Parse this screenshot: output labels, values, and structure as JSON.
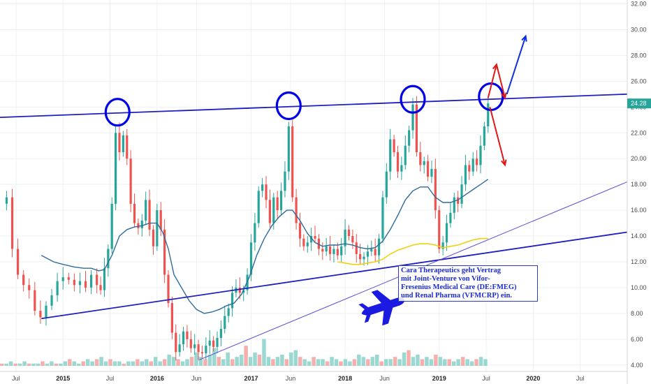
{
  "colors": {
    "up_candle": "#26a69a",
    "down_candle": "#ef5350",
    "trendline": "#1f1fbf",
    "thin_trendline": "#5a4fd6",
    "ma_short": "#2f6b9a",
    "ma_long": "#f0d010",
    "circle": "#0000e6",
    "arrow_red": "#e01818",
    "arrow_blue": "#1030e0",
    "price_tag": "#26a69a",
    "plane": "#1a1ae0",
    "volume_up": "#8fd4cc",
    "volume_down": "#f4a6a4"
  },
  "price_tag": {
    "label": "24.28",
    "value": 24.28
  },
  "annotation": {
    "lines": [
      "Cara Therapeutics geht Vertrag",
      "mit Joint-Venture von Vifor-",
      "Fresenius Medical Care (DE:FMEG)",
      "und Renal Pharma (VFMCRP) ein."
    ]
  },
  "icons": [
    "airplane-icon",
    "circle-marker",
    "arrow-up-blue",
    "arrow-down-red"
  ],
  "chart_data": {
    "type": "candlestick",
    "y_axis": {
      "ticks": [
        4,
        6,
        8,
        10,
        12,
        14,
        16,
        18,
        20,
        22,
        24,
        26,
        28,
        30,
        32
      ],
      "tick_labels": [
        "4.00",
        "6.00",
        "8.00",
        "10.00",
        "12.00",
        "14.00",
        "16.00",
        "18.00",
        "20.00",
        "22.00",
        "24.00",
        "26.00",
        "28.00",
        "30.00",
        "32.00"
      ],
      "range": [
        3.5,
        32.3
      ],
      "position": "right",
      "grid": true
    },
    "x_axis": {
      "ticks": [
        {
          "label": "Jul",
          "t": 2014.5,
          "bold": false
        },
        {
          "label": "2015",
          "t": 2015.0,
          "bold": true
        },
        {
          "label": "Jul",
          "t": 2015.5,
          "bold": false
        },
        {
          "label": "2016",
          "t": 2016.0,
          "bold": true
        },
        {
          "label": "Jun",
          "t": 2016.42,
          "bold": false
        },
        {
          "label": "2017",
          "t": 2017.0,
          "bold": true
        },
        {
          "label": "Jun",
          "t": 2017.42,
          "bold": false
        },
        {
          "label": "2018",
          "t": 2018.0,
          "bold": true
        },
        {
          "label": "Jun",
          "t": 2018.42,
          "bold": false
        },
        {
          "label": "2019",
          "t": 2019.0,
          "bold": true
        },
        {
          "label": "Jul",
          "t": 2019.5,
          "bold": false
        },
        {
          "label": "2020",
          "t": 2020.0,
          "bold": true
        },
        {
          "label": "Jul",
          "t": 2020.5,
          "bold": false
        }
      ],
      "range": [
        2014.33,
        2021.0
      ],
      "grid": true
    },
    "close_series": [
      [
        2014.33,
        16.5
      ],
      [
        2014.4,
        17.0
      ],
      [
        2014.46,
        13.0
      ],
      [
        2014.52,
        11.0
      ],
      [
        2014.58,
        10.2
      ],
      [
        2014.64,
        9.8
      ],
      [
        2014.7,
        8.2
      ],
      [
        2014.76,
        7.7
      ],
      [
        2014.82,
        8.6
      ],
      [
        2014.88,
        9.4
      ],
      [
        2014.94,
        10.5
      ],
      [
        2015.0,
        10.8
      ],
      [
        2015.06,
        10.6
      ],
      [
        2015.12,
        10.2
      ],
      [
        2015.18,
        10.5
      ],
      [
        2015.24,
        10.0
      ],
      [
        2015.3,
        11.0
      ],
      [
        2015.36,
        10.2
      ],
      [
        2015.4,
        9.8
      ],
      [
        2015.44,
        11.5
      ],
      [
        2015.48,
        13.0
      ],
      [
        2015.52,
        16.5
      ],
      [
        2015.56,
        22.0
      ],
      [
        2015.6,
        20.5
      ],
      [
        2015.64,
        21.8
      ],
      [
        2015.68,
        20.0
      ],
      [
        2015.72,
        16.5
      ],
      [
        2015.76,
        15.0
      ],
      [
        2015.8,
        14.6
      ],
      [
        2015.84,
        15.2
      ],
      [
        2015.88,
        16.8
      ],
      [
        2015.92,
        14.5
      ],
      [
        2015.96,
        13.2
      ],
      [
        2016.0,
        16.0
      ],
      [
        2016.04,
        14.5
      ],
      [
        2016.08,
        11.0
      ],
      [
        2016.12,
        8.8
      ],
      [
        2016.16,
        6.5
      ],
      [
        2016.2,
        5.0
      ],
      [
        2016.24,
        5.6
      ],
      [
        2016.28,
        6.6
      ],
      [
        2016.32,
        6.0
      ],
      [
        2016.36,
        5.3
      ],
      [
        2016.4,
        5.6
      ],
      [
        2016.44,
        5.0
      ],
      [
        2016.48,
        4.9
      ],
      [
        2016.52,
        5.5
      ],
      [
        2016.56,
        5.9
      ],
      [
        2016.6,
        5.4
      ],
      [
        2016.64,
        6.1
      ],
      [
        2016.68,
        6.8
      ],
      [
        2016.72,
        7.8
      ],
      [
        2016.76,
        8.4
      ],
      [
        2016.8,
        9.6
      ],
      [
        2016.84,
        10.0
      ],
      [
        2016.88,
        9.6
      ],
      [
        2016.92,
        9.8
      ],
      [
        2016.96,
        11.0
      ],
      [
        2017.0,
        13.5
      ],
      [
        2017.04,
        15.0
      ],
      [
        2017.08,
        17.5
      ],
      [
        2017.12,
        18.0
      ],
      [
        2017.16,
        16.8
      ],
      [
        2017.2,
        15.0
      ],
      [
        2017.24,
        17.0
      ],
      [
        2017.28,
        16.0
      ],
      [
        2017.32,
        17.5
      ],
      [
        2017.36,
        19.0
      ],
      [
        2017.4,
        22.5
      ],
      [
        2017.44,
        17.0
      ],
      [
        2017.48,
        15.0
      ],
      [
        2017.52,
        13.8
      ],
      [
        2017.56,
        13.2
      ],
      [
        2017.6,
        13.5
      ],
      [
        2017.64,
        14.0
      ],
      [
        2017.68,
        13.8
      ],
      [
        2017.72,
        13.0
      ],
      [
        2017.76,
        12.8
      ],
      [
        2017.8,
        13.2
      ],
      [
        2017.84,
        12.6
      ],
      [
        2017.88,
        13.0
      ],
      [
        2017.92,
        12.5
      ],
      [
        2017.96,
        13.2
      ],
      [
        2018.0,
        14.5
      ],
      [
        2018.04,
        14.0
      ],
      [
        2018.08,
        13.5
      ],
      [
        2018.12,
        12.6
      ],
      [
        2018.16,
        12.2
      ],
      [
        2018.2,
        12.4
      ],
      [
        2018.24,
        12.8
      ],
      [
        2018.28,
        13.0
      ],
      [
        2018.32,
        12.5
      ],
      [
        2018.36,
        13.8
      ],
      [
        2018.4,
        17.0
      ],
      [
        2018.44,
        19.0
      ],
      [
        2018.48,
        21.5
      ],
      [
        2018.52,
        20.5
      ],
      [
        2018.56,
        19.0
      ],
      [
        2018.6,
        19.5
      ],
      [
        2018.64,
        21.0
      ],
      [
        2018.68,
        22.2
      ],
      [
        2018.72,
        24.2
      ],
      [
        2018.76,
        20.5
      ],
      [
        2018.8,
        19.5
      ],
      [
        2018.84,
        19.8
      ],
      [
        2018.88,
        18.6
      ],
      [
        2018.92,
        19.2
      ],
      [
        2018.96,
        16.0
      ],
      [
        2019.0,
        13.0
      ],
      [
        2019.04,
        13.5
      ],
      [
        2019.08,
        15.0
      ],
      [
        2019.12,
        15.8
      ],
      [
        2019.16,
        17.0
      ],
      [
        2019.2,
        16.5
      ],
      [
        2019.24,
        18.0
      ],
      [
        2019.28,
        19.5
      ],
      [
        2019.32,
        19.0
      ],
      [
        2019.36,
        20.0
      ],
      [
        2019.4,
        19.5
      ],
      [
        2019.44,
        21.0
      ],
      [
        2019.48,
        22.5
      ],
      [
        2019.52,
        24.28
      ]
    ],
    "moving_average_short": [
      [
        2014.77,
        12.5
      ],
      [
        2014.9,
        12.0
      ],
      [
        2015.0,
        11.8
      ],
      [
        2015.12,
        11.6
      ],
      [
        2015.22,
        11.5
      ],
      [
        2015.3,
        11.5
      ],
      [
        2015.38,
        11.3
      ],
      [
        2015.44,
        11.4
      ],
      [
        2015.52,
        12.5
      ],
      [
        2015.6,
        14.0
      ],
      [
        2015.68,
        14.5
      ],
      [
        2015.76,
        14.7
      ],
      [
        2015.84,
        14.8
      ],
      [
        2015.92,
        15.0
      ],
      [
        2016.0,
        15.0
      ],
      [
        2016.06,
        14.3
      ],
      [
        2016.12,
        13.0
      ],
      [
        2016.18,
        11.0
      ],
      [
        2016.26,
        10.0
      ],
      [
        2016.34,
        9.0
      ],
      [
        2016.42,
        8.3
      ],
      [
        2016.5,
        8.0
      ],
      [
        2016.58,
        8.1
      ],
      [
        2016.66,
        8.3
      ],
      [
        2016.74,
        8.6
      ],
      [
        2016.82,
        8.8
      ],
      [
        2016.9,
        9.5
      ],
      [
        2016.98,
        10.8
      ],
      [
        2017.06,
        12.5
      ],
      [
        2017.14,
        13.8
      ],
      [
        2017.22,
        14.8
      ],
      [
        2017.3,
        15.5
      ],
      [
        2017.38,
        16.0
      ],
      [
        2017.44,
        16.0
      ],
      [
        2017.52,
        15.2
      ],
      [
        2017.6,
        14.2
      ],
      [
        2017.68,
        13.5
      ],
      [
        2017.76,
        13.2
      ],
      [
        2017.84,
        13.3
      ],
      [
        2017.92,
        13.3
      ],
      [
        2018.0,
        13.4
      ],
      [
        2018.08,
        13.3
      ],
      [
        2018.16,
        13.1
      ],
      [
        2018.24,
        13.0
      ],
      [
        2018.32,
        13.1
      ],
      [
        2018.4,
        13.6
      ],
      [
        2018.48,
        14.5
      ],
      [
        2018.56,
        15.6
      ],
      [
        2018.64,
        16.8
      ],
      [
        2018.72,
        17.5
      ],
      [
        2018.8,
        17.8
      ],
      [
        2018.88,
        17.8
      ],
      [
        2018.96,
        17.0
      ],
      [
        2019.04,
        16.6
      ],
      [
        2019.12,
        16.6
      ],
      [
        2019.2,
        16.8
      ],
      [
        2019.28,
        17.2
      ],
      [
        2019.36,
        17.6
      ],
      [
        2019.44,
        18.0
      ],
      [
        2019.52,
        18.4
      ]
    ],
    "moving_average_long": [
      [
        2017.92,
        12.0
      ],
      [
        2018.0,
        11.9
      ],
      [
        2018.08,
        11.8
      ],
      [
        2018.16,
        11.8
      ],
      [
        2018.24,
        11.9
      ],
      [
        2018.32,
        12.0
      ],
      [
        2018.4,
        12.2
      ],
      [
        2018.48,
        12.6
      ],
      [
        2018.56,
        12.9
      ],
      [
        2018.64,
        13.1
      ],
      [
        2018.72,
        13.3
      ],
      [
        2018.8,
        13.4
      ],
      [
        2018.88,
        13.4
      ],
      [
        2018.96,
        13.3
      ],
      [
        2019.04,
        13.1
      ],
      [
        2019.12,
        13.2
      ],
      [
        2019.2,
        13.3
      ],
      [
        2019.28,
        13.5
      ],
      [
        2019.36,
        13.7
      ],
      [
        2019.44,
        13.8
      ],
      [
        2019.52,
        13.8
      ]
    ],
    "volume_heights": [
      1,
      1,
      2,
      1,
      1,
      2,
      1,
      1,
      1,
      2,
      1,
      2,
      1,
      1,
      2,
      3,
      2,
      1,
      2,
      3,
      2,
      3,
      4,
      2,
      3,
      2,
      2,
      1,
      2,
      2,
      3,
      2,
      3,
      2,
      4,
      2,
      3,
      5,
      4,
      3,
      2,
      3,
      4,
      6,
      4,
      3,
      5,
      8,
      4,
      3,
      6,
      3,
      4,
      5,
      9,
      4,
      6,
      5,
      12,
      4,
      3,
      4,
      5,
      3,
      6,
      7,
      4,
      3,
      2,
      4,
      3,
      3,
      2,
      4,
      3,
      2,
      3,
      2,
      3,
      5,
      4,
      3,
      4,
      5,
      2,
      3,
      3,
      4,
      3,
      6,
      7,
      4,
      5,
      3,
      4,
      3,
      5,
      4,
      3,
      3,
      2,
      3,
      4,
      3,
      2,
      3,
      4,
      3
    ],
    "trendlines": [
      {
        "name": "resistance",
        "from": [
          2014.33,
          23.2
        ],
        "to": [
          2021.0,
          25.0
        ]
      },
      {
        "name": "lower",
        "from": [
          2014.77,
          7.6
        ],
        "to": [
          2021.0,
          14.3
        ]
      },
      {
        "name": "thin-support",
        "from": [
          2016.45,
          4.4
        ],
        "to": [
          2021.0,
          18.2
        ]
      }
    ],
    "circle_markers": [
      {
        "t": 2015.58,
        "v": 23.6
      },
      {
        "t": 2017.4,
        "v": 24.1
      },
      {
        "t": 2018.72,
        "v": 24.6
      },
      {
        "t": 2019.55,
        "v": 24.8
      }
    ],
    "arrows": [
      {
        "color": "red",
        "from": [
          2019.52,
          24.7
        ],
        "to": [
          2019.61,
          27.3
        ]
      },
      {
        "color": "red",
        "from": [
          2019.61,
          27.3
        ],
        "to": [
          2019.7,
          24.7
        ]
      },
      {
        "color": "red",
        "from": [
          2019.54,
          24.0
        ],
        "to": [
          2019.7,
          19.5
        ]
      },
      {
        "color": "blue",
        "from": [
          2019.72,
          25.0
        ],
        "to": [
          2019.92,
          29.5
        ]
      }
    ]
  }
}
